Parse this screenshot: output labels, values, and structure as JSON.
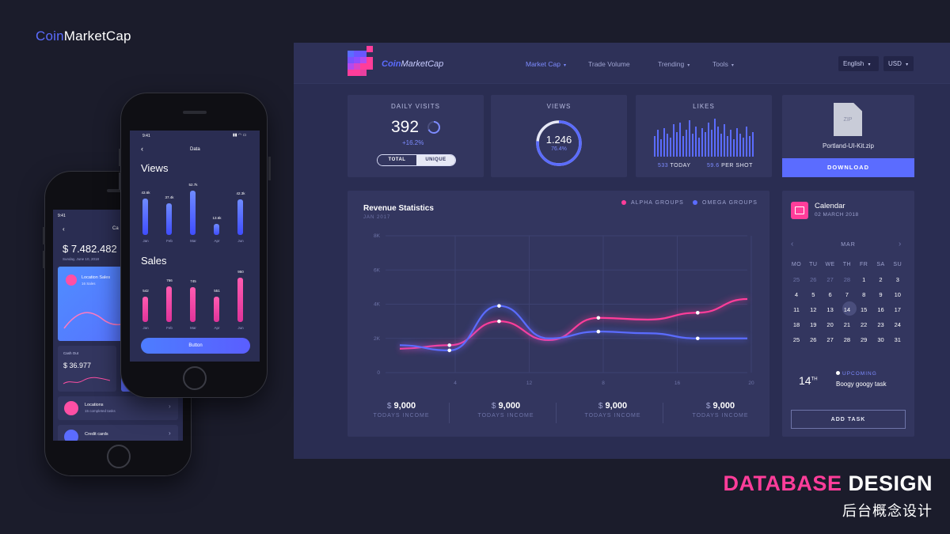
{
  "brand": {
    "prefix": "Coin",
    "rest": "MarketCap"
  },
  "caption": {
    "pink": "DATABASE",
    "white": "DESIGN",
    "sub": "后台概念设计"
  },
  "dashboard": {
    "logo_prefix": "Coin",
    "logo_rest": "MarketCap",
    "nav": [
      {
        "label": "Market Cap",
        "caret": "▾"
      },
      {
        "label": "Trade Volume",
        "caret": ""
      },
      {
        "label": "Trending",
        "caret": "▾"
      },
      {
        "label": "Tools",
        "caret": "▾"
      }
    ],
    "language": "English",
    "currency": "USD",
    "caret": "▾",
    "daily_visits": {
      "title": "DAILY VISITS",
      "value": "392",
      "change": "+16.2%",
      "toggle_total": "TOTAL",
      "toggle_unique": "UNIQUE"
    },
    "views": {
      "title": "VIEWS",
      "value": "1.246",
      "percent": "76.4%",
      "progress": 0.764
    },
    "likes": {
      "title": "LIKES",
      "today_num": "533",
      "today_lbl": "TODAY",
      "shot_num": "59.6",
      "shot_lbl": "PER SHOT"
    },
    "file": {
      "badge": "ZIP",
      "name": "Portland-UI-Kit.zip",
      "download": "DOWNLOAD"
    },
    "revenue": {
      "title": "Revenue Statistics",
      "subtitle": "JAN 2017",
      "legend_alpha": "ALPHA GROUPS",
      "legend_omega": "OMEGA GROUPS",
      "income": [
        {
          "currency": "$",
          "value": "9,000",
          "label": "TODAYS INCOME"
        },
        {
          "currency": "$",
          "value": "9,000",
          "label": "TODAYS INCOME"
        },
        {
          "currency": "$",
          "value": "9,000",
          "label": "TODAYS INCOME"
        },
        {
          "currency": "$",
          "value": "9,000",
          "label": "TODAYS INCOME"
        }
      ]
    },
    "calendar": {
      "title": "Calendar",
      "date": "02 MARCH 2018",
      "month": "MAR",
      "prev": "‹",
      "next": "›",
      "weekdays": [
        "MO",
        "TU",
        "WE",
        "TH",
        "FR",
        "SA",
        "SU"
      ],
      "rows": [
        [
          "25",
          "26",
          "27",
          "28",
          "1",
          "2",
          "3"
        ],
        [
          "4",
          "5",
          "6",
          "7",
          "8",
          "9",
          "10"
        ],
        [
          "11",
          "12",
          "13",
          "14",
          "15",
          "16",
          "17"
        ],
        [
          "18",
          "19",
          "20",
          "21",
          "22",
          "23",
          "24"
        ],
        [
          "25",
          "26",
          "27",
          "28",
          "29",
          "30",
          "31"
        ]
      ],
      "upcoming_day": "14",
      "upcoming_sup": "TH",
      "upcoming_label": "UPCOMING",
      "upcoming_task": "Boogy googy task",
      "add_task": "ADD TASK"
    }
  },
  "chart_data": {
    "type": "line",
    "title": "Revenue Statistics",
    "subtitle": "JAN 2017",
    "x_ticks": [
      "4",
      "12",
      "8",
      "16",
      "20"
    ],
    "y_ticks": [
      "0",
      "2K",
      "4K",
      "6K",
      "8K"
    ],
    "ylim": [
      0,
      8000
    ],
    "series": [
      {
        "name": "ALPHA GROUPS",
        "color": "#ff3d9a",
        "x": [
          0,
          1,
          2,
          3,
          4,
          5,
          6,
          7
        ],
        "values": [
          1400,
          1600,
          3000,
          1900,
          3200,
          3100,
          3500,
          4300
        ]
      },
      {
        "name": "OMEGA GROUPS",
        "color": "#5b6cff",
        "x": [
          0,
          1,
          2,
          3,
          4,
          5,
          6,
          7
        ],
        "values": [
          1600,
          1300,
          3900,
          2000,
          2400,
          2300,
          2000,
          2000
        ]
      }
    ]
  },
  "likes_bars": [
    0.55,
    0.7,
    0.45,
    0.75,
    0.6,
    0.5,
    0.85,
    0.65,
    0.9,
    0.55,
    0.7,
    0.95,
    0.6,
    0.8,
    0.5,
    0.75,
    0.65,
    0.9,
    0.7,
    1.0,
    0.8,
    0.6,
    0.85,
    0.55,
    0.7,
    0.45,
    0.75,
    0.6,
    0.5,
    0.8,
    0.55,
    0.65
  ],
  "phone_front": {
    "time": "9:41",
    "title": "Data",
    "views_title": "Views",
    "views": [
      {
        "label": "43.6k",
        "value": 43.6,
        "month": "Jan"
      },
      {
        "label": "37.4k",
        "value": 37.4,
        "month": "Feb"
      },
      {
        "label": "52.7k",
        "value": 52.7,
        "month": "Mar"
      },
      {
        "label": "13.6k",
        "value": 13.6,
        "month": "Apr"
      },
      {
        "label": "42.3k",
        "value": 42.3,
        "month": "Jun"
      }
    ],
    "sales_title": "Sales",
    "sales": [
      {
        "label": "542",
        "value": 542,
        "month": "Jan"
      },
      {
        "label": "766",
        "value": 766,
        "month": "Feb"
      },
      {
        "label": "745",
        "value": 745,
        "month": "Mar"
      },
      {
        "label": "551",
        "value": 551,
        "month": "Apr"
      },
      {
        "label": "950",
        "value": 950,
        "month": "Jun"
      }
    ],
    "button": "Button"
  },
  "phone_back": {
    "time": "9:41",
    "title_partial": "Ca",
    "amount": "$ 7.482.482",
    "date": "Sunday, June 10, 2018",
    "location_sales_title": "Location Sales",
    "location_sales_sub": "16 Sales",
    "cash_out_label": "Cash Out",
    "cash_out_value": "$ 36.977",
    "locations_title": "Locations",
    "locations_sub": "15 completed tasks",
    "credit_cards": "Credit cards"
  }
}
